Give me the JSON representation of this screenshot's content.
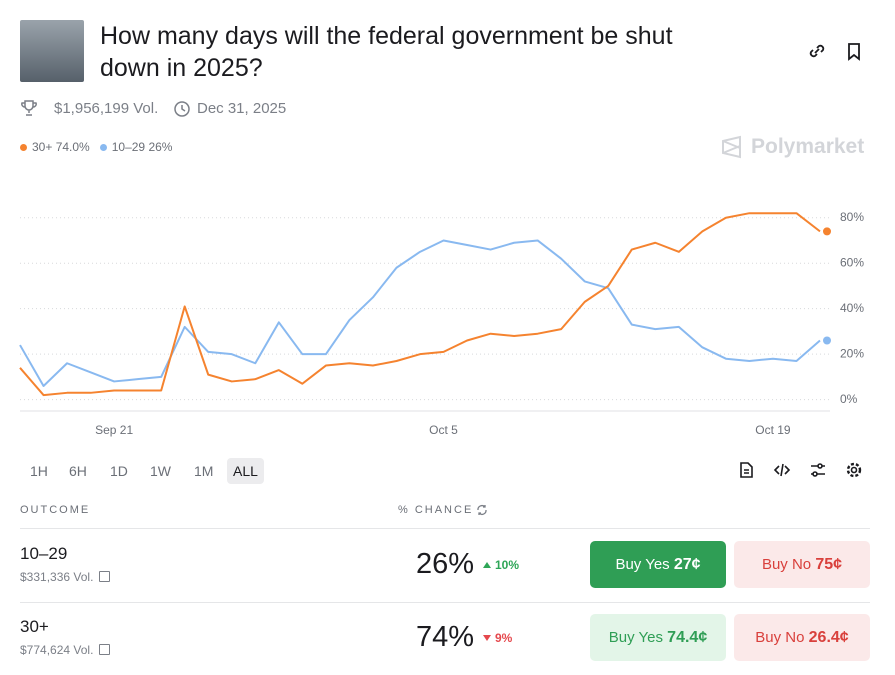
{
  "header": {
    "title_line1": "How many days will the federal government be shut",
    "title_line2": "down in 2025?",
    "volume": "$1,956,199 Vol.",
    "end_date": "Dec 31, 2025",
    "brand": "Polymarket"
  },
  "chart_data": {
    "type": "line",
    "x": [
      "Sep 17",
      "Sep 18",
      "Sep 19",
      "Sep 20",
      "Sep 21",
      "Sep 22",
      "Sep 23",
      "Sep 24",
      "Sep 25",
      "Sep 26",
      "Sep 27",
      "Sep 28",
      "Sep 29",
      "Sep 30",
      "Oct 1",
      "Oct 2",
      "Oct 3",
      "Oct 4",
      "Oct 5",
      "Oct 6",
      "Oct 7",
      "Oct 8",
      "Oct 9",
      "Oct 10",
      "Oct 11",
      "Oct 12",
      "Oct 13",
      "Oct 14",
      "Oct 15",
      "Oct 16",
      "Oct 17",
      "Oct 18",
      "Oct 19",
      "Oct 20",
      "Oct 21"
    ],
    "series": [
      {
        "name": "30+",
        "current_label": "74.0%",
        "color": "#f5832f",
        "values": [
          14,
          2,
          3,
          3,
          4,
          4,
          4,
          41,
          11,
          8,
          9,
          13,
          7,
          15,
          16,
          15,
          17,
          20,
          21,
          26,
          29,
          28,
          29,
          31,
          43,
          50,
          66,
          69,
          65,
          74,
          80,
          82,
          82,
          82,
          74
        ]
      },
      {
        "name": "10–29",
        "current_label": "26%",
        "color": "#89b9f0",
        "values": [
          24,
          6,
          16,
          12,
          8,
          9,
          10,
          32,
          21,
          20,
          16,
          34,
          20,
          20,
          35,
          45,
          58,
          65,
          70,
          68,
          66,
          69,
          70,
          62,
          52,
          49,
          33,
          31,
          32,
          23,
          18,
          17,
          18,
          17,
          26
        ]
      }
    ],
    "xticks": [
      "Sep 21",
      "Oct 5",
      "Oct 19"
    ],
    "ylim": [
      -5,
      90
    ],
    "yticks": [
      {
        "value": 0,
        "label": "0%"
      },
      {
        "value": 20,
        "label": "20%"
      },
      {
        "value": 40,
        "label": "40%"
      },
      {
        "value": 60,
        "label": "60%"
      },
      {
        "value": 80,
        "label": "80%"
      }
    ],
    "grid": true
  },
  "timeframes": [
    "1H",
    "6H",
    "1D",
    "1W",
    "1M",
    "ALL"
  ],
  "selected_timeframe": "ALL",
  "table": {
    "headers": [
      "OUTCOME",
      "% CHANCE"
    ],
    "rows": [
      {
        "outcome": "10–29",
        "volume": "$331,336 Vol.",
        "chance": "26%",
        "change": "10%",
        "direction": "up",
        "yes_label": "Buy Yes",
        "yes_price": "27¢",
        "no_label": "Buy No",
        "no_price": "75¢"
      },
      {
        "outcome": "30+",
        "volume": "$774,624 Vol.",
        "chance": "74%",
        "change": "9%",
        "direction": "down",
        "yes_label": "Buy Yes",
        "yes_price": "74.4¢",
        "no_label": "Buy No",
        "no_price": "26.4¢"
      }
    ]
  }
}
